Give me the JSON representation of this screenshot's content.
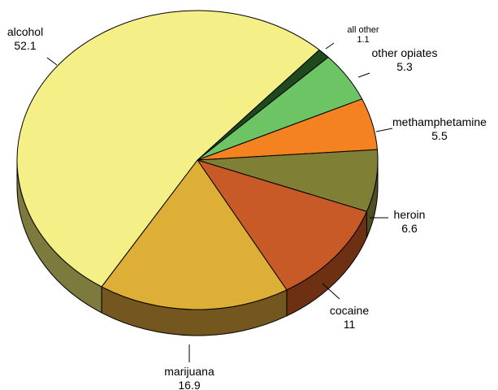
{
  "chart_data": {
    "type": "pie",
    "title": "",
    "three_d": true,
    "start_direction": "clockwise from the upper right, beginning with the smallest slice",
    "slices": [
      {
        "label": "all other",
        "value": 1.1,
        "value_text": "1.1",
        "color": "#1e4a1e",
        "side_color": "#112b11"
      },
      {
        "label": "other opiates",
        "value": 5.3,
        "value_text": "5.3",
        "color": "#6cc464",
        "side_color": "#3e7b39"
      },
      {
        "label": "methamphetamine",
        "value": 5.5,
        "value_text": "5.5",
        "color": "#f58220",
        "side_color": "#9a4d10"
      },
      {
        "label": "heroin",
        "value": 6.6,
        "value_text": "6.6",
        "color": "#7f7f35",
        "side_color": "#4f4f1f"
      },
      {
        "label": "cocaine",
        "value": 11,
        "value_text": "11",
        "color": "#c85a28",
        "side_color": "#6e3013"
      },
      {
        "label": "marijuana",
        "value": 16.9,
        "value_text": "16.9",
        "color": "#deaf37",
        "side_color": "#73571e"
      },
      {
        "label": "alcohol",
        "value": 52.1,
        "value_text": "52.1",
        "color": "#f4ef86",
        "side_color": "#7c7a3d"
      }
    ]
  }
}
